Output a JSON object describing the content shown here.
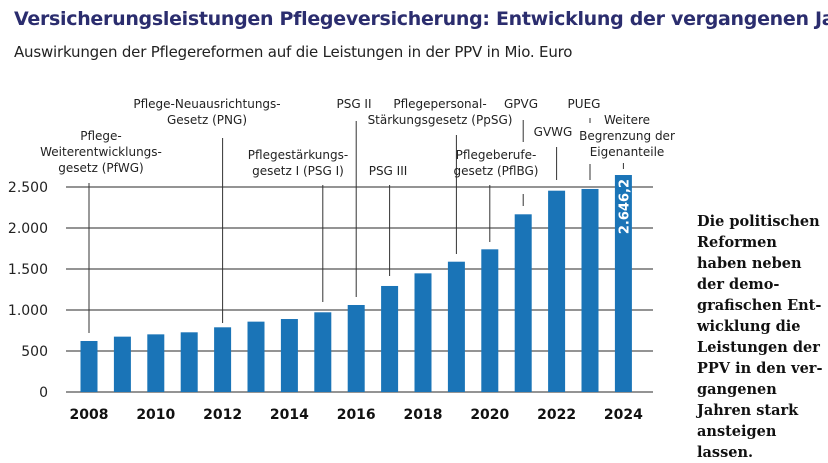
{
  "title": "Versicherungsleistungen Pflegeversicherung: Entwicklung der vergangenen Jahre",
  "subtitle": "Auswirkungen der Pflegereformen auf die Leistungen in der PPV in Mio. Euro",
  "note": "Die politischen Reformen haben neben der demo-grafischen Ent-wicklung die Leistungen der PPV in den ver-gangenen Jahren stark ansteigen lassen.",
  "colors": {
    "bar": "#1a74b7",
    "grid": "#555555",
    "title": "#2b2d6e",
    "value_label": "#ffffff"
  },
  "chart_data": {
    "type": "bar",
    "title": "",
    "xlabel": "",
    "ylabel": "",
    "ylim": [
      0,
      2500
    ],
    "grid": true,
    "categories": [
      "2008",
      "2009",
      "2010",
      "2011",
      "2012",
      "2013",
      "2014",
      "2015",
      "2016",
      "2017",
      "2018",
      "2019",
      "2020",
      "2021",
      "2022",
      "2023",
      "2024"
    ],
    "x_tick_labels": [
      "2008",
      "2010",
      "2012",
      "2014",
      "2016",
      "2018",
      "2020",
      "2022",
      "2024"
    ],
    "y_tick_labels": [
      "0",
      "500",
      "1.000",
      "1.500",
      "2.000",
      "2.500"
    ],
    "y_ticks": [
      0,
      500,
      1000,
      1500,
      2000,
      2500
    ],
    "values": [
      622,
      675,
      703,
      728,
      789,
      858,
      890,
      972,
      1061,
      1293,
      1447,
      1589,
      1740,
      2167,
      2455,
      2476,
      2646.2
    ],
    "data_labels": [
      {
        "category": "2024",
        "text": "2.646,2"
      }
    ],
    "annotations": [
      {
        "year": "2008",
        "lines": [
          "Pflege-",
          "Weiterentwicklungs-",
          "gesetz (PfWG)"
        ]
      },
      {
        "year": "2012",
        "lines": [
          "Pflege-Neuausrichtungs-",
          "Gesetz (PNG)"
        ]
      },
      {
        "year": "2015",
        "lines": [
          "Pflegestärkungs-",
          "gesetz I (PSG I)"
        ]
      },
      {
        "year": "2016",
        "lines": [
          "PSG II"
        ]
      },
      {
        "year": "2017",
        "lines": [
          "PSG III"
        ]
      },
      {
        "year": "2019",
        "lines": [
          "Pflegepersonal-",
          "Stärkungsgesetz (PpSG)"
        ]
      },
      {
        "year": "2020",
        "lines": [
          "Pflegeberufe-",
          "gesetz (PflBG)"
        ]
      },
      {
        "year": "2021",
        "lines": [
          "GPVG"
        ]
      },
      {
        "year": "2022",
        "lines": [
          "GVWG"
        ]
      },
      {
        "year": "2023",
        "lines": [
          "PUEG"
        ]
      },
      {
        "year": "2024",
        "lines": [
          "Weitere",
          "Begrenzung der",
          "Eigenanteile"
        ]
      }
    ]
  }
}
